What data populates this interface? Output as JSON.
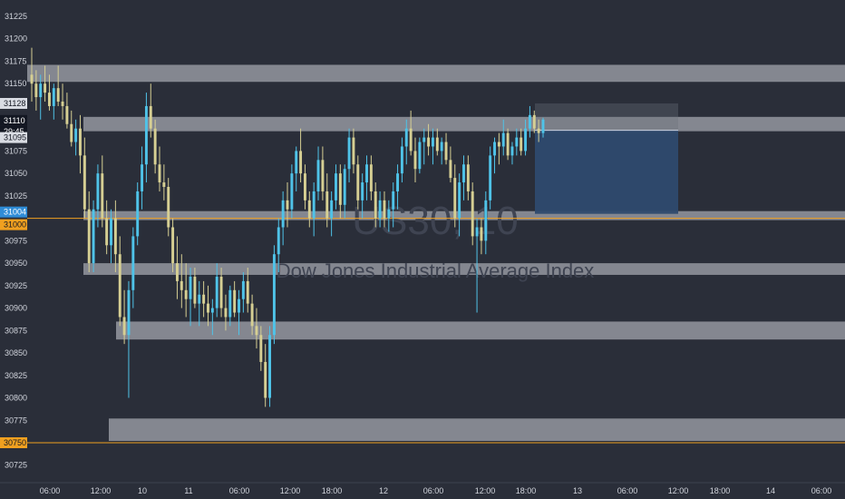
{
  "chart_data": {
    "type": "candlestick",
    "watermark_symbol": "US30, 10",
    "watermark_name": "Dow Jones Industrial Average Index",
    "y_ticks": [
      31225,
      31200,
      31175,
      31150,
      31075,
      31050,
      31025,
      30975,
      30950,
      30925,
      30900,
      30875,
      30850,
      30825,
      30800,
      30775,
      30725
    ],
    "x_ticks": [
      "06:00",
      "12:00",
      "10",
      "11",
      "06:00",
      "12:00",
      "18:00",
      "12",
      "06:00",
      "12:00",
      "18:00",
      "13",
      "06:00",
      "12:00",
      "18:00",
      "14",
      "06:00"
    ],
    "ylim": [
      30705,
      31245
    ],
    "zones": [
      {
        "low": 31152,
        "high": 31171
      },
      {
        "low": 31097,
        "high": 31113
      },
      {
        "low": 30998,
        "high": 31008
      },
      {
        "low": 30937,
        "high": 30950
      },
      {
        "low": 30865,
        "high": 30885
      },
      {
        "low": 30752,
        "high": 30777
      }
    ],
    "price_labels": {
      "level_31128": "31128",
      "current_price": "31110",
      "countdown": "29:45",
      "level_31095": "31095",
      "level_31004": "31004",
      "level_31000": "31000",
      "level_30750": "30750"
    },
    "horizontal_lines": [
      31000,
      30750
    ],
    "position_box": {
      "entry": 31098,
      "target": 31005,
      "stop": 31128
    },
    "colors": {
      "background": "#2a2e39",
      "bull": "#4fc3e8",
      "bear": "#d6cf93",
      "zone": "#a8abb2",
      "level_line": "#f0a020",
      "blue_label": "#2f8cd6",
      "target_fill": "#2e4a6e"
    },
    "candles": [
      [
        31160,
        31190,
        31130,
        31150
      ],
      [
        31150,
        31165,
        31120,
        31135
      ],
      [
        31135,
        31160,
        31110,
        31150
      ],
      [
        31150,
        31170,
        31130,
        31140
      ],
      [
        31140,
        31160,
        31120,
        31125
      ],
      [
        31125,
        31150,
        31110,
        31145
      ],
      [
        31145,
        31170,
        31125,
        31130
      ],
      [
        31130,
        31150,
        31110,
        31125
      ],
      [
        31125,
        31140,
        31100,
        31105
      ],
      [
        31105,
        31120,
        31080,
        31085
      ],
      [
        31085,
        31110,
        31070,
        31100
      ],
      [
        31100,
        31115,
        31050,
        31070
      ],
      [
        31070,
        31090,
        31000,
        31010
      ],
      [
        31010,
        31030,
        30940,
        30950
      ],
      [
        30950,
        31020,
        30940,
        31010
      ],
      [
        31010,
        31060,
        30990,
        31050
      ],
      [
        31050,
        31070,
        30990,
        31000
      ],
      [
        31000,
        31020,
        30960,
        30970
      ],
      [
        30970,
        31010,
        30950,
        31000
      ],
      [
        31000,
        31020,
        30940,
        30960
      ],
      [
        30960,
        30980,
        30880,
        30890
      ],
      [
        30890,
        30920,
        30860,
        30870
      ],
      [
        30870,
        30930,
        30800,
        30920
      ],
      [
        30920,
        30990,
        30900,
        30980
      ],
      [
        30980,
        31040,
        30970,
        31030
      ],
      [
        31030,
        31080,
        31010,
        31060
      ],
      [
        31060,
        31140,
        31040,
        31125
      ],
      [
        31125,
        31150,
        31090,
        31100
      ],
      [
        31100,
        31110,
        31050,
        31060
      ],
      [
        31060,
        31080,
        31030,
        31040
      ],
      [
        31040,
        31060,
        31020,
        31035
      ],
      [
        31035,
        31045,
        30980,
        30990
      ],
      [
        30990,
        31000,
        30940,
        30950
      ],
      [
        30950,
        30980,
        30910,
        30930
      ],
      [
        30930,
        30960,
        30900,
        30920
      ],
      [
        30920,
        30950,
        30890,
        30910
      ],
      [
        30910,
        30945,
        30880,
        30935
      ],
      [
        30935,
        30945,
        30900,
        30905
      ],
      [
        30905,
        30930,
        30880,
        30915
      ],
      [
        30915,
        30930,
        30890,
        30905
      ],
      [
        30905,
        30925,
        30880,
        30895
      ],
      [
        30895,
        30910,
        30870,
        30900
      ],
      [
        30900,
        30950,
        30890,
        30935
      ],
      [
        30935,
        30945,
        30890,
        30900
      ],
      [
        30900,
        30915,
        30875,
        30890
      ],
      [
        30890,
        30925,
        30880,
        30920
      ],
      [
        30920,
        30930,
        30890,
        30895
      ],
      [
        30895,
        30920,
        30870,
        30910
      ],
      [
        30910,
        30940,
        30895,
        30930
      ],
      [
        30930,
        30945,
        30895,
        30905
      ],
      [
        30905,
        30915,
        30870,
        30880
      ],
      [
        30880,
        30900,
        30855,
        30870
      ],
      [
        30870,
        30880,
        30830,
        30840
      ],
      [
        30840,
        30860,
        30790,
        30800
      ],
      [
        30800,
        30880,
        30790,
        30870
      ],
      [
        30870,
        30970,
        30860,
        30960
      ],
      [
        30960,
        31000,
        30940,
        30990
      ],
      [
        30990,
        31030,
        30970,
        31020
      ],
      [
        31020,
        31040,
        30990,
        31010
      ],
      [
        31010,
        31060,
        31000,
        31050
      ],
      [
        31050,
        31080,
        31030,
        31075
      ],
      [
        31075,
        31100,
        31040,
        31050
      ],
      [
        31050,
        31060,
        31010,
        31020
      ],
      [
        31020,
        31030,
        30990,
        31000
      ],
      [
        31000,
        31040,
        30980,
        31030
      ],
      [
        31030,
        31080,
        31020,
        31065
      ],
      [
        31065,
        31080,
        31020,
        31030
      ],
      [
        31030,
        31050,
        30990,
        31000
      ],
      [
        31000,
        31030,
        30980,
        31020
      ],
      [
        31020,
        31060,
        31010,
        31050
      ],
      [
        31050,
        31060,
        31000,
        31015
      ],
      [
        31015,
        31060,
        31000,
        31055
      ],
      [
        31055,
        31100,
        31040,
        31090
      ],
      [
        31090,
        31100,
        31050,
        31060
      ],
      [
        31060,
        31070,
        31010,
        31020
      ],
      [
        31020,
        31050,
        31000,
        31040
      ],
      [
        31040,
        31070,
        31020,
        31060
      ],
      [
        31060,
        31070,
        31020,
        31030
      ],
      [
        31030,
        31040,
        30990,
        31000
      ],
      [
        31000,
        31030,
        30990,
        31020
      ],
      [
        31020,
        31030,
        30990,
        31000
      ],
      [
        31000,
        31020,
        30985,
        31010
      ],
      [
        31010,
        31040,
        30990,
        31030
      ],
      [
        31030,
        31060,
        31010,
        31050
      ],
      [
        31050,
        31090,
        31040,
        31080
      ],
      [
        31080,
        31110,
        31060,
        31100
      ],
      [
        31100,
        31120,
        31070,
        31075
      ],
      [
        31075,
        31090,
        31040,
        31055
      ],
      [
        31055,
        31090,
        31050,
        31085
      ],
      [
        31085,
        31100,
        31060,
        31090
      ],
      [
        31090,
        31105,
        31070,
        31080
      ],
      [
        31080,
        31100,
        31060,
        31090
      ],
      [
        31090,
        31100,
        31070,
        31075
      ],
      [
        31075,
        31090,
        31060,
        31085
      ],
      [
        31085,
        31095,
        31060,
        31065
      ],
      [
        31065,
        31080,
        31040,
        31045
      ],
      [
        31045,
        31060,
        30990,
        31000
      ],
      [
        31000,
        31050,
        30980,
        31040
      ],
      [
        31040,
        31070,
        31020,
        31060
      ],
      [
        31060,
        31070,
        31020,
        31030
      ],
      [
        31030,
        31040,
        30970,
        30980
      ],
      [
        30980,
        31000,
        30895,
        30990
      ],
      [
        30990,
        31000,
        30960,
        30975
      ],
      [
        30975,
        31030,
        30960,
        31020
      ],
      [
        31020,
        31080,
        31010,
        31070
      ],
      [
        31070,
        31090,
        31050,
        31085
      ],
      [
        31085,
        31095,
        31060,
        31080
      ],
      [
        31080,
        31110,
        31070,
        31095
      ],
      [
        31095,
        31100,
        31065,
        31070
      ],
      [
        31070,
        31085,
        31060,
        31080
      ],
      [
        31080,
        31100,
        31070,
        31090
      ],
      [
        31090,
        31100,
        31070,
        31075
      ],
      [
        31075,
        31110,
        31070,
        31100
      ],
      [
        31100,
        31125,
        31090,
        31115
      ],
      [
        31115,
        31120,
        31095,
        31100
      ],
      [
        31100,
        31110,
        31085,
        31095
      ],
      [
        31095,
        31112,
        31090,
        31110
      ]
    ]
  }
}
